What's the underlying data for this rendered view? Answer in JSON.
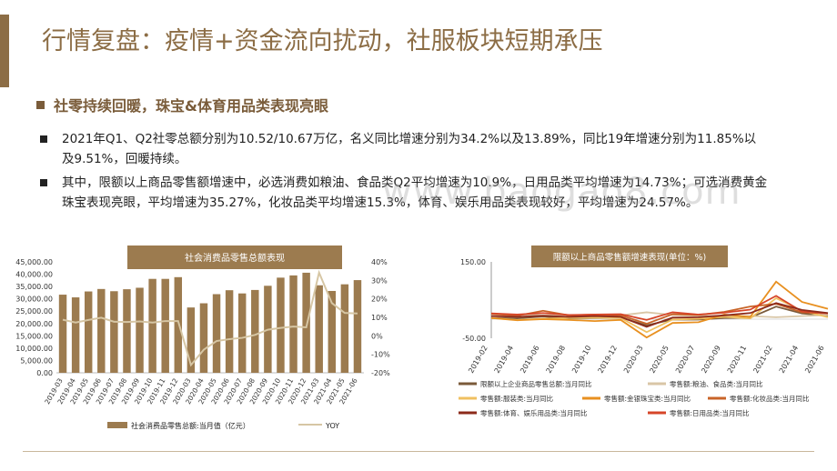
{
  "header": {
    "title": "行情复盘：疫情+资金流向扰动，社服板块短期承压",
    "subtitle": "社零持续回暖，珠宝&体育用品类表现亮眼"
  },
  "bullets": [
    "2021年Q1、Q2社零总额分别为10.52/10.67万亿，名义同比增速分别为34.2%以及13.89%，同比19年增速分别为11.85%以及9.51%，回暖持续。",
    "其中，限额以上商品零售额增速中，必选消费如粮油、食品类Q2平均增速为10.9%，日用品类平均增速为14.73%；可选消费黄金珠宝表现亮眼，平均增速为35.27%，化妆品类平均增速15.3%，体育、娱乐用品类表现较好，平均增速为24.57%。"
  ],
  "watermark": "www.baogao8.com",
  "chart_data": [
    {
      "type": "bar",
      "title": "社会消费品零售总额表现",
      "categories": [
        "2019-03",
        "2019-04",
        "2019-05",
        "2019-06",
        "2019-07",
        "2019-08",
        "2019-09",
        "2019-10",
        "2019-11",
        "2019-12",
        "2020-03",
        "2020-04",
        "2020-05",
        "2020-06",
        "2020-07",
        "2020-08",
        "2020-09",
        "2020-10",
        "2020-11",
        "2020-12",
        "2021-03",
        "2021-04",
        "2021-05",
        "2021-06"
      ],
      "yticks_left": [
        "0.00",
        "5,000.00",
        "10,000.00",
        "15,000.00",
        "20,000.00",
        "25,000.00",
        "30,000.00",
        "35,000.00",
        "40,000.00",
        "45,000.00"
      ],
      "yticks_right": [
        "-20%",
        "-10%",
        "0%",
        "10%",
        "20%",
        "30%",
        "40%"
      ],
      "ylim_left": [
        0,
        45000
      ],
      "ylim_right": [
        -20,
        40
      ],
      "series": [
        {
          "name": "社会消费品零售总额:当月值（亿元）",
          "kind": "bar",
          "color": "#9c7b4f",
          "values": [
            31700,
            30600,
            33000,
            34000,
            33100,
            33900,
            34500,
            38100,
            38100,
            38800,
            26500,
            28200,
            31900,
            33500,
            32200,
            33600,
            35300,
            38600,
            39500,
            40600,
            35500,
            33200,
            35900,
            37600
          ]
        },
        {
          "name": "YOY",
          "kind": "line",
          "color": "#d6c6a4",
          "values": [
            8.7,
            7.2,
            8.6,
            9.8,
            7.6,
            7.5,
            7.8,
            7.2,
            8.0,
            8.0,
            -15.8,
            -7.5,
            -2.8,
            -1.8,
            -1.1,
            0.5,
            3.3,
            4.3,
            5.0,
            4.6,
            34.2,
            17.7,
            12.4,
            12.1
          ]
        }
      ]
    },
    {
      "type": "line",
      "title": "限额以上商品零售额增速表现(单位：%)",
      "yticks": [
        "-50.00",
        "150.00"
      ],
      "ylim": [
        -50,
        150
      ],
      "categories": [
        "2019-02",
        "2019-04",
        "2019-06",
        "2019-08",
        "2019-10",
        "2019-12",
        "2020-03",
        "2020-05",
        "2020-07",
        "2020-09",
        "2020-11",
        "2021-02",
        "2021-04",
        "2021-06"
      ],
      "series": [
        {
          "name": "限额以上企业商品零售总额:当月同比",
          "color": "#7a5a3a",
          "values": [
            3,
            2,
            7,
            2,
            3,
            4,
            -16,
            -1,
            -1,
            3,
            4,
            33,
            15,
            9
          ]
        },
        {
          "name": "零售额:粮油、食品类:当月同比",
          "color": "#d9c6a6",
          "values": [
            9,
            12,
            10,
            11,
            11,
            10,
            18,
            11,
            9,
            8,
            8,
            5,
            8,
            11
          ]
        },
        {
          "name": "零售额:服装类:当月同比",
          "color": "#f0c060",
          "values": [
            3,
            -2,
            1,
            3,
            4,
            3,
            -34,
            -1,
            1,
            6,
            2,
            55,
            22,
            5
          ]
        },
        {
          "name": "零售额:金银珠宝类:当月同比",
          "color": "#e89020",
          "values": [
            3,
            -3,
            0,
            -2,
            -5,
            -2,
            -48,
            -10,
            -8,
            12,
            6,
            98,
            45,
            27
          ]
        },
        {
          "name": "零售额:化妆品类:当月同比",
          "color": "#c86428",
          "values": [
            14,
            9,
            22,
            10,
            12,
            10,
            -12,
            13,
            11,
            19,
            33,
            40,
            18,
            15
          ]
        },
        {
          "name": "零售额:日用品类:当月同比",
          "color": "#d64528",
          "values": [
            15,
            12,
            16,
            11,
            12,
            13,
            -2,
            18,
            12,
            17,
            25,
            61,
            20,
            15
          ]
        },
        {
          "name": "零售额:体育、娱乐用品类:当月同比",
          "color": "#8c2a1a",
          "values": [
            8,
            6,
            9,
            6,
            8,
            6,
            -20,
            4,
            5,
            10,
            16,
            42,
            24,
            16
          ]
        }
      ],
      "legend": [
        "限额以上企业商品零售总额:当月同比",
        "零售额:粮油、食品类:当月同比",
        "零售额:服装类:当月同比",
        "零售额:金银珠宝类:当月同比",
        "零售额:化妆品类:当月同比",
        "零售额:日用品类:当月同比",
        "零售额:体育、娱乐用品类:当月同比"
      ]
    }
  ],
  "legend_left": {
    "bar_label": "社会消费品零售总额:当月值（亿元）",
    "line_label": "YOY"
  },
  "legend_right_rows": [
    [
      "限额以上企业商品零售总额:当月同比",
      "零售额:粮油、食品类:当月同比"
    ],
    [
      "零售额:服装类:当月同比",
      "零售额:金银珠宝类:当月同比",
      "零售额:化妆品类:当月同比"
    ],
    [
      "零售额:体育、娱乐用品类:当月同比",
      "零售额:日用品类:当月同比"
    ]
  ]
}
